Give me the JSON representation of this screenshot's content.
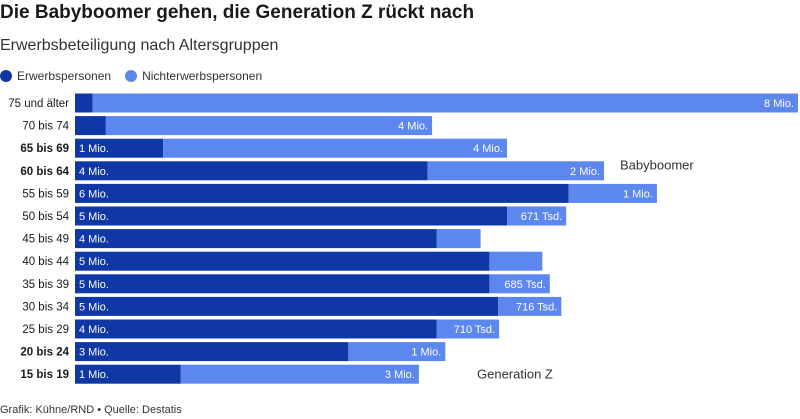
{
  "header": {
    "title": "Die Babyboomer gehen, die Generation Z rückt nach",
    "subtitle": "Erwerbsbeteiligung nach Altersgruppen"
  },
  "legend": {
    "items": [
      {
        "label": "Erwerbspersonen",
        "color": "#0f37a6"
      },
      {
        "label": "Nichterwerbspersonen",
        "color": "#5b87ef"
      }
    ]
  },
  "footer": {
    "source": "Grafik: Kühne/RND • Quelle: Destatis"
  },
  "chart_data": {
    "type": "bar",
    "orientation": "horizontal",
    "stacked": true,
    "categories": [
      "75 und älter",
      "70 bis 74",
      "65 bis 69",
      "60 bis 64",
      "55 bis 59",
      "50 bis 54",
      "45 bis 49",
      "40 bis 44",
      "35 bis 39",
      "30 bis 34",
      "25 bis 29",
      "20 bis 24",
      "15 bis 19"
    ],
    "bold_categories": [
      "65 bis 69",
      "60 bis 64",
      "20 bis 24",
      "15 bis 19"
    ],
    "series": [
      {
        "name": "Erwerbspersonen",
        "color": "#0f37a6",
        "values": [
          0.2,
          0.35,
          1.0,
          4.0,
          5.6,
          4.9,
          4.1,
          4.7,
          4.7,
          4.8,
          4.1,
          3.1,
          1.2
        ],
        "labels": [
          "",
          "",
          "1 Mio.",
          "4 Mio.",
          "6 Mio.",
          "5 Mio.",
          "4 Mio.",
          "5 Mio.",
          "5 Mio.",
          "5 Mio.",
          "4 Mio.",
          "3 Mio.",
          "1 Mio."
        ]
      },
      {
        "name": "Nichterwerbspersonen",
        "color": "#5b87ef",
        "values": [
          8.0,
          3.7,
          3.9,
          2.0,
          1.0,
          0.671,
          0.5,
          0.6,
          0.685,
          0.716,
          0.71,
          1.1,
          2.7
        ],
        "labels": [
          "8 Mio.",
          "4 Mio.",
          "4 Mio.",
          "2 Mio.",
          "1 Mio.",
          "671 Tsd.",
          "",
          "",
          "685 Tsd.",
          "716 Tsd.",
          "710 Tsd.",
          "1 Mio.",
          "3 Mio."
        ]
      }
    ],
    "annotations": [
      {
        "text": "Babyboomer",
        "near_category": "65 bis 69"
      },
      {
        "text": "Generation Z",
        "near_category": "20 bis 24"
      }
    ],
    "xlim": [
      0,
      8.2
    ],
    "grid": false
  }
}
